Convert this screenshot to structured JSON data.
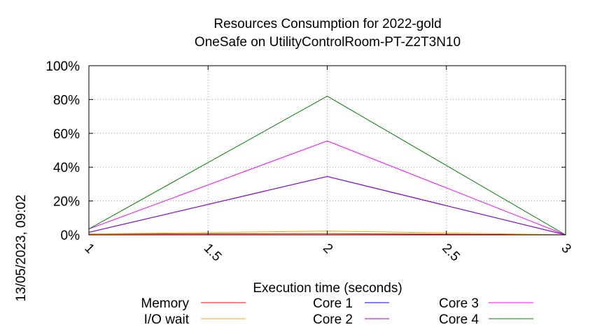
{
  "chart_data": {
    "type": "line",
    "title": "Resources Consumption for 2022-gold",
    "subtitle": "OneSafe on UtilityControlRoom-PT-Z2T3N10",
    "xlabel": "Execution time (seconds)",
    "ylabel": "",
    "side_label": "13/05/2023, 09:02",
    "xlim": [
      1,
      3
    ],
    "ylim": [
      0,
      100
    ],
    "x_ticks": [
      1,
      1.5,
      2,
      2.5,
      3
    ],
    "x_tick_labels": [
      "1",
      "1.5",
      "2",
      "2.5",
      "3"
    ],
    "y_ticks": [
      0,
      20,
      40,
      60,
      80,
      100
    ],
    "y_tick_labels": [
      "0%",
      "20%",
      "40%",
      "60%",
      "80%",
      "100%"
    ],
    "grid": true,
    "legend_position": "bottom",
    "x": [
      1,
      2,
      3
    ],
    "series": [
      {
        "name": "Memory",
        "color": "#ff0000",
        "values": [
          0.5,
          0.7,
          0
        ]
      },
      {
        "name": "I/O wait",
        "color": "#ffa500",
        "values": [
          0.5,
          2.2,
          0
        ]
      },
      {
        "name": "Core 1",
        "color": "#0000ff",
        "values": [
          1.5,
          34.5,
          0
        ]
      },
      {
        "name": "Core 2",
        "color": "#9400d3",
        "values": [
          1.5,
          34.5,
          0
        ]
      },
      {
        "name": "Core 3",
        "color": "#ff00ff",
        "values": [
          3.5,
          55.5,
          0
        ]
      },
      {
        "name": "Core 4",
        "color": "#008000",
        "values": [
          3.5,
          82,
          0
        ]
      }
    ]
  }
}
